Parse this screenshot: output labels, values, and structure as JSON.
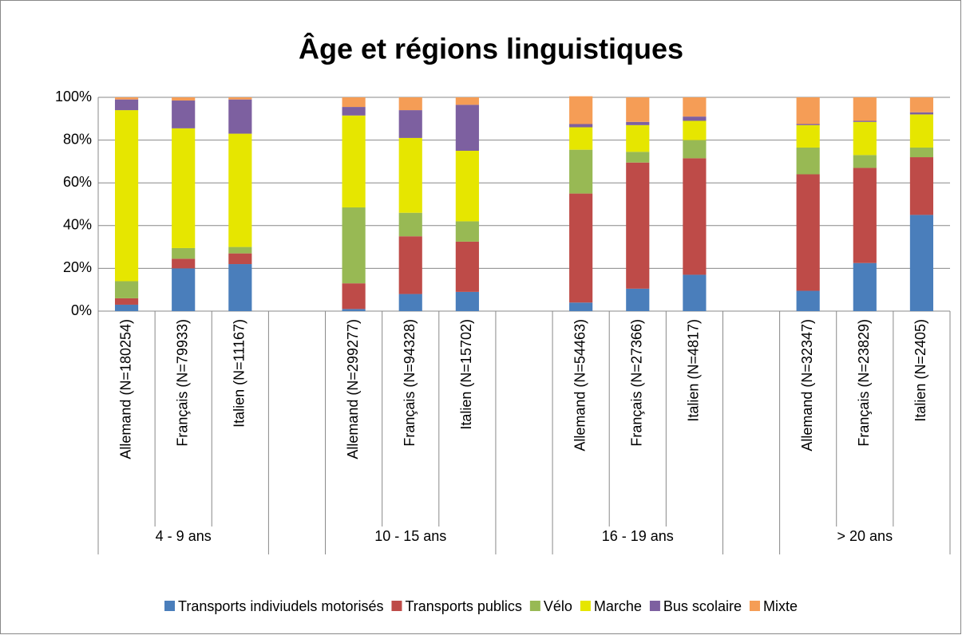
{
  "chart_data": {
    "type": "stacked_bar",
    "title": "Âge et régions linguistiques",
    "categories": [
      "Allemand (N=180254)",
      "Français (N=79933)",
      "Italien (N=11167)",
      null,
      "Allemand (N=299277)",
      "Français (N=94328)",
      "Italien (N=15702)",
      null,
      "Allemand (N=54463)",
      "Français (N=27366)",
      "Italien (N=4817)",
      null,
      "Allemand (N=32347)",
      "Français (N=23829)",
      "Italien (N=2405)"
    ],
    "groups": [
      "4 - 9 ans",
      "10 - 15 ans",
      "16 - 19 ans",
      "> 20 ans"
    ],
    "series": [
      {
        "name": "Transports indiviudels motorisés",
        "color": "#4a7ebb",
        "values": [
          3,
          20,
          22,
          null,
          1,
          8,
          9,
          null,
          4,
          10.5,
          17,
          null,
          9.5,
          22.5,
          45
        ]
      },
      {
        "name": "Transports publics",
        "color": "#be4b48",
        "values": [
          3,
          4.5,
          5,
          null,
          12,
          27,
          23.5,
          null,
          51,
          59,
          54.5,
          null,
          54.5,
          44.5,
          27
        ]
      },
      {
        "name": "Vélo",
        "color": "#98b954",
        "values": [
          8,
          5,
          3,
          null,
          35.5,
          11,
          9.5,
          null,
          20.5,
          5,
          8.5,
          null,
          12.5,
          6,
          4.5
        ]
      },
      {
        "name": "Marche",
        "color": "#e6e600",
        "values": [
          80,
          56,
          53,
          null,
          43,
          35,
          33,
          null,
          10.5,
          12.5,
          9,
          null,
          10.5,
          15.5,
          15.5
        ]
      },
      {
        "name": "Bus scolaire",
        "color": "#7d60a0",
        "values": [
          5,
          13,
          16,
          null,
          4,
          13,
          21.5,
          null,
          1.5,
          1.5,
          2,
          null,
          0.5,
          0.5,
          1
        ]
      },
      {
        "name": "Mixte",
        "color": "#f59d56",
        "values": [
          1,
          1.5,
          1,
          null,
          4.5,
          6,
          3.5,
          null,
          13,
          11.5,
          9,
          null,
          12.5,
          11,
          7
        ]
      }
    ],
    "ylim": [
      0,
      100
    ],
    "yticks": [
      {
        "value": 0,
        "label": "0%"
      },
      {
        "value": 20,
        "label": "20%"
      },
      {
        "value": 40,
        "label": "40%"
      },
      {
        "value": 60,
        "label": "60%"
      },
      {
        "value": 80,
        "label": "80%"
      },
      {
        "value": 100,
        "label": "100%"
      }
    ],
    "grid": true,
    "legend": "bottom"
  }
}
